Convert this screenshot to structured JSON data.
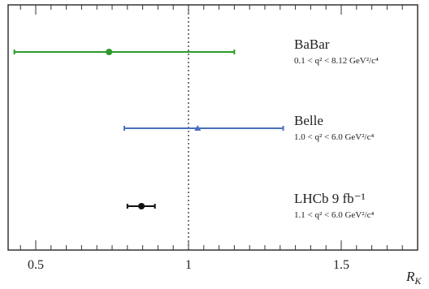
{
  "chart_data": {
    "type": "scatter",
    "title": "",
    "xlabel": "R_K",
    "ylabel": "",
    "xlim": [
      0.4,
      1.75
    ],
    "x_ticks": [
      0.5,
      1,
      1.5
    ],
    "x_tick_labels": [
      "0.5",
      "1",
      "1.5"
    ],
    "grid": false,
    "reference_line": {
      "x": 1.0,
      "style": "dotted"
    },
    "series": [
      {
        "name": "BaBar",
        "range_label": "0.1 < q² < 8.12 GeV²/c⁴",
        "x": 0.74,
        "x_low": 0.43,
        "x_high": 1.15,
        "color": "#2e9a2e",
        "marker": "circle"
      },
      {
        "name": "Belle",
        "range_label": "1.0 < q² < 6.0 GeV²/c⁴",
        "x": 1.03,
        "x_low": 0.79,
        "x_high": 1.31,
        "color": "#4a6fc0",
        "marker": "triangle"
      },
      {
        "name": "LHCb 9 fb⁻¹",
        "range_label": "1.1 < q² < 6.0 GeV²/c⁴",
        "x": 0.846,
        "x_low": 0.8,
        "x_high": 0.89,
        "color": "#111111",
        "marker": "circle"
      }
    ]
  }
}
